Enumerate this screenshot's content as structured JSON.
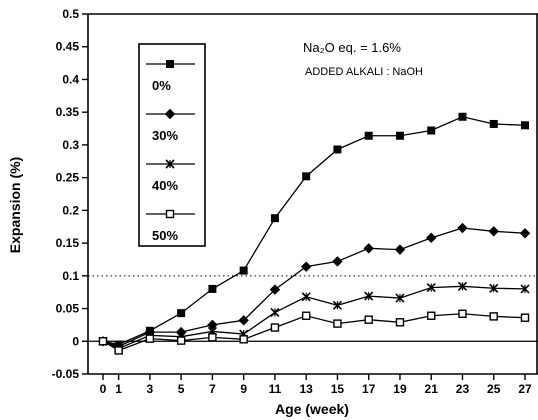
{
  "chart_data": {
    "type": "line",
    "title": "",
    "xlabel": "Age (week)",
    "ylabel": "Expansion (%)",
    "x": [
      0,
      1,
      3,
      5,
      7,
      9,
      11,
      13,
      15,
      17,
      19,
      21,
      23,
      25,
      27
    ],
    "x_ticks": [
      "0",
      "1",
      "3",
      "5",
      "7",
      "9",
      "11",
      "13",
      "15",
      "17",
      "19",
      "21",
      "23",
      "25",
      "27"
    ],
    "ylim": [
      -0.05,
      0.5
    ],
    "y_ticks": [
      "-0.05",
      "0",
      "0.05",
      "0.1",
      "0.15",
      "0.2",
      "0.25",
      "0.3",
      "0.35",
      "0.4",
      "0.45",
      "0.5"
    ],
    "reference_line": {
      "y": 0.1,
      "style": "dotted"
    },
    "zero_line": {
      "y": 0
    },
    "annotations": {
      "main": "Na₂O eq. = 1.6%",
      "sub": "ADDED ALKALI : NaOH"
    },
    "legend_placement": "upper-left",
    "series": [
      {
        "name": "0%",
        "marker": "filled-square",
        "values": [
          0,
          -0.005,
          0.016,
          0.043,
          0.08,
          0.108,
          0.188,
          0.252,
          0.293,
          0.314,
          0.314,
          0.322,
          0.343,
          0.332,
          0.33
        ]
      },
      {
        "name": "30%",
        "marker": "filled-diamond",
        "values": [
          0,
          -0.008,
          0.014,
          0.014,
          0.025,
          0.032,
          0.079,
          0.114,
          0.122,
          0.142,
          0.14,
          0.158,
          0.173,
          0.168,
          0.165
        ]
      },
      {
        "name": "40%",
        "marker": "asterisk",
        "values": [
          0,
          -0.011,
          0.009,
          0.007,
          0.015,
          0.011,
          0.044,
          0.068,
          0.055,
          0.069,
          0.066,
          0.082,
          0.084,
          0.081,
          0.08
        ]
      },
      {
        "name": "50%",
        "marker": "open-square",
        "values": [
          0,
          -0.014,
          0.004,
          0.001,
          0.006,
          0.003,
          0.021,
          0.039,
          0.027,
          0.033,
          0.029,
          0.039,
          0.042,
          0.038,
          0.036
        ]
      }
    ]
  }
}
